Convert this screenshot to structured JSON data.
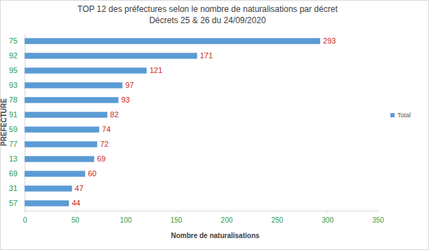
{
  "chart_data": {
    "type": "bar",
    "orientation": "horizontal",
    "title": "TOP 12 des préfectures selon le nombre de naturalisations par décret",
    "subtitle": "Décrets 25 & 26 du 24/09/2020",
    "x_label": "Nombre de naturalisations",
    "y_label": "PREFECTURE",
    "categories": [
      "75",
      "92",
      "95",
      "93",
      "78",
      "91",
      "59",
      "77",
      "13",
      "69",
      "31",
      "57"
    ],
    "series": [
      {
        "name": "Total",
        "color": "#5b9bd5",
        "values": [
          293,
          171,
          121,
          97,
          93,
          82,
          74,
          72,
          69,
          60,
          47,
          44
        ]
      }
    ],
    "xlim": [
      0,
      350
    ],
    "xticks": [
      0,
      50,
      100,
      150,
      200,
      250,
      300,
      350
    ],
    "grid": false,
    "legend": "right",
    "data_labels": true
  }
}
